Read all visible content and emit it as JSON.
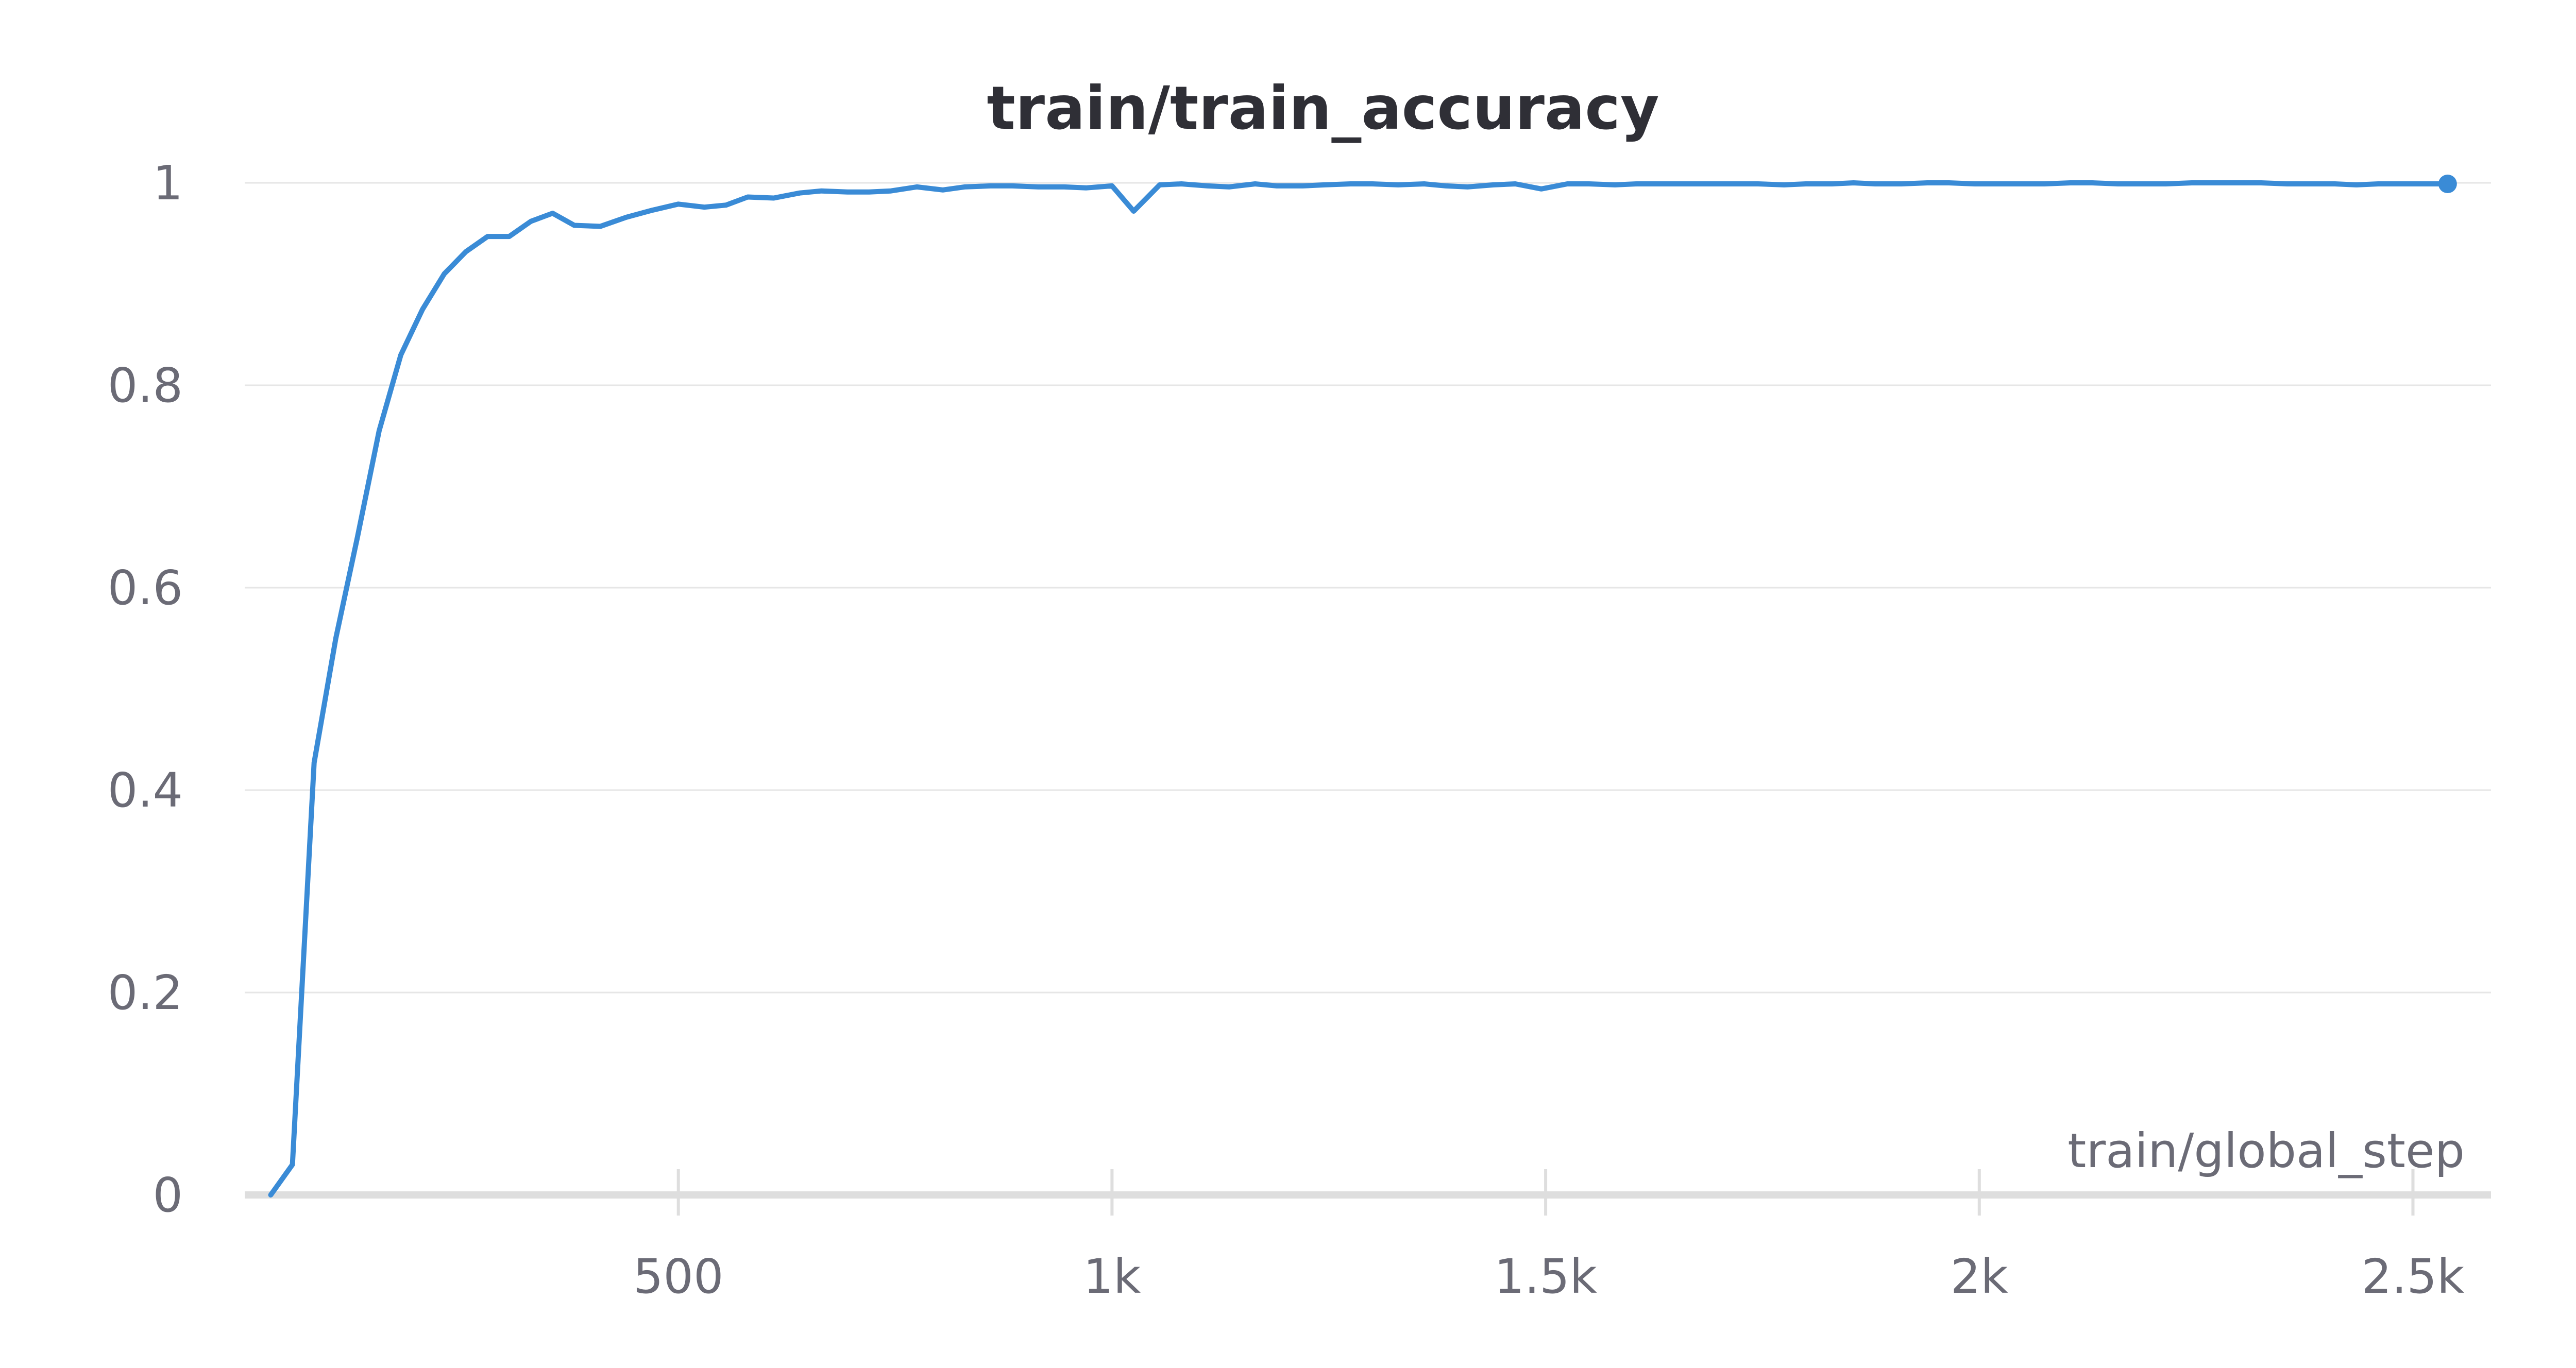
{
  "chart_data": {
    "type": "line",
    "title": "train/train_accuracy",
    "xlabel": "train/global_step",
    "ylabel": "",
    "xlim": [
      0,
      2590
    ],
    "ylim": [
      0,
      1
    ],
    "grid": true,
    "x_ticks": [
      {
        "value": 500,
        "label": "500"
      },
      {
        "value": 1000,
        "label": "1k"
      },
      {
        "value": 1500,
        "label": "1.5k"
      },
      {
        "value": 2000,
        "label": "2k"
      },
      {
        "value": 2500,
        "label": "2.5k"
      }
    ],
    "y_ticks": [
      {
        "value": 0,
        "label": "0"
      },
      {
        "value": 0.2,
        "label": "0.2"
      },
      {
        "value": 0.4,
        "label": "0.4"
      },
      {
        "value": 0.6,
        "label": "0.6"
      },
      {
        "value": 0.8,
        "label": "0.8"
      },
      {
        "value": 1,
        "label": "1"
      }
    ],
    "colors": {
      "line": "#3a8bd6",
      "grid": "#e6e6e6",
      "axis": "#dedede"
    },
    "series": [
      {
        "x": [
          30,
          55,
          80,
          105,
          130,
          155,
          180,
          205,
          230,
          255,
          280,
          305,
          330,
          355,
          380,
          410,
          440,
          470,
          500,
          530,
          555,
          580,
          610,
          640,
          665,
          695,
          720,
          745,
          775,
          805,
          830,
          860,
          885,
          915,
          945,
          970,
          1000,
          1025,
          1055,
          1080,
          1110,
          1135,
          1165,
          1190,
          1220,
          1245,
          1275,
          1300,
          1330,
          1360,
          1385,
          1410,
          1440,
          1465,
          1495,
          1525,
          1550,
          1580,
          1605,
          1635,
          1660,
          1690,
          1720,
          1745,
          1775,
          1800,
          1830,
          1855,
          1880,
          1910,
          1940,
          1965,
          1995,
          2020,
          2050,
          2075,
          2105,
          2130,
          2160,
          2190,
          2215,
          2245,
          2270,
          2300,
          2325,
          2355,
          2380,
          2410,
          2435,
          2460,
          2490,
          2515,
          2540
        ],
        "y": [
          0.0,
          0.03,
          0.427,
          0.55,
          0.65,
          0.755,
          0.83,
          0.875,
          0.91,
          0.932,
          0.947,
          0.947,
          0.962,
          0.97,
          0.958,
          0.957,
          0.966,
          0.973,
          0.979,
          0.976,
          0.978,
          0.986,
          0.985,
          0.99,
          0.992,
          0.991,
          0.991,
          0.992,
          0.996,
          0.993,
          0.996,
          0.997,
          0.997,
          0.996,
          0.996,
          0.995,
          0.997,
          0.972,
          0.998,
          0.999,
          0.997,
          0.996,
          0.999,
          0.997,
          0.997,
          0.998,
          0.999,
          0.999,
          0.998,
          0.999,
          0.997,
          0.996,
          0.998,
          0.999,
          0.994,
          0.999,
          0.999,
          0.998,
          0.999,
          0.999,
          0.999,
          0.999,
          0.999,
          0.999,
          0.998,
          0.999,
          0.999,
          1.0,
          0.999,
          0.999,
          1.0,
          1.0,
          0.999,
          0.999,
          0.999,
          0.999,
          1.0,
          1.0,
          0.999,
          0.999,
          0.999,
          1.0,
          1.0,
          1.0,
          1.0,
          0.999,
          0.999,
          0.999,
          0.998,
          0.999,
          0.999,
          0.999,
          0.999
        ]
      }
    ]
  }
}
